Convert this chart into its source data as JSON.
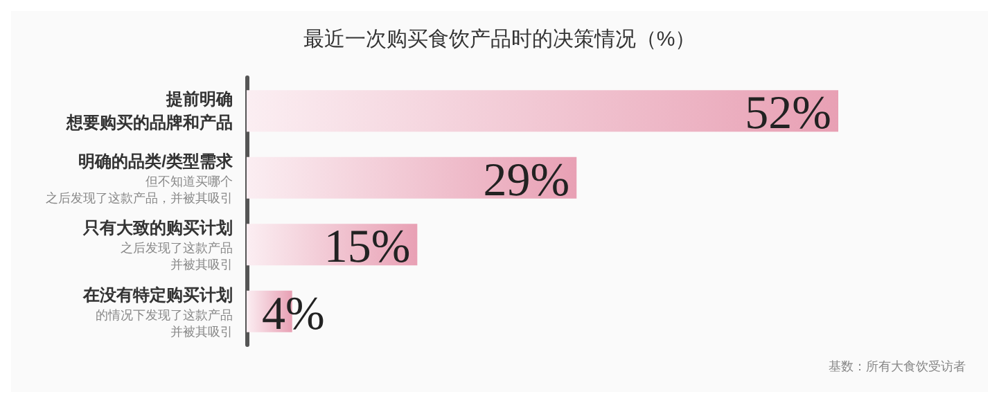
{
  "chart_data": {
    "type": "bar",
    "orientation": "horizontal",
    "title": "最近一次购买食饮产品时的决策情况（%）",
    "categories": [
      "提前明确想要购买的品牌和产品",
      "明确的品类/类型需求",
      "只有大致的购买计划",
      "在没有特定购买计划"
    ],
    "values": [
      52,
      29,
      15,
      4
    ],
    "value_labels": [
      "52%",
      "29%",
      "15%",
      "4%"
    ],
    "color": "#e8a0b4",
    "grid": false,
    "annotations": [
      "但不知道买哪个",
      "之后发现了这款产品，并被其吸引",
      "之后发现了这款产品",
      "并被其吸引",
      "的情况下发现了这款产品",
      "并被其吸引",
      "基数：所有大食饮受访者"
    ]
  }
}
